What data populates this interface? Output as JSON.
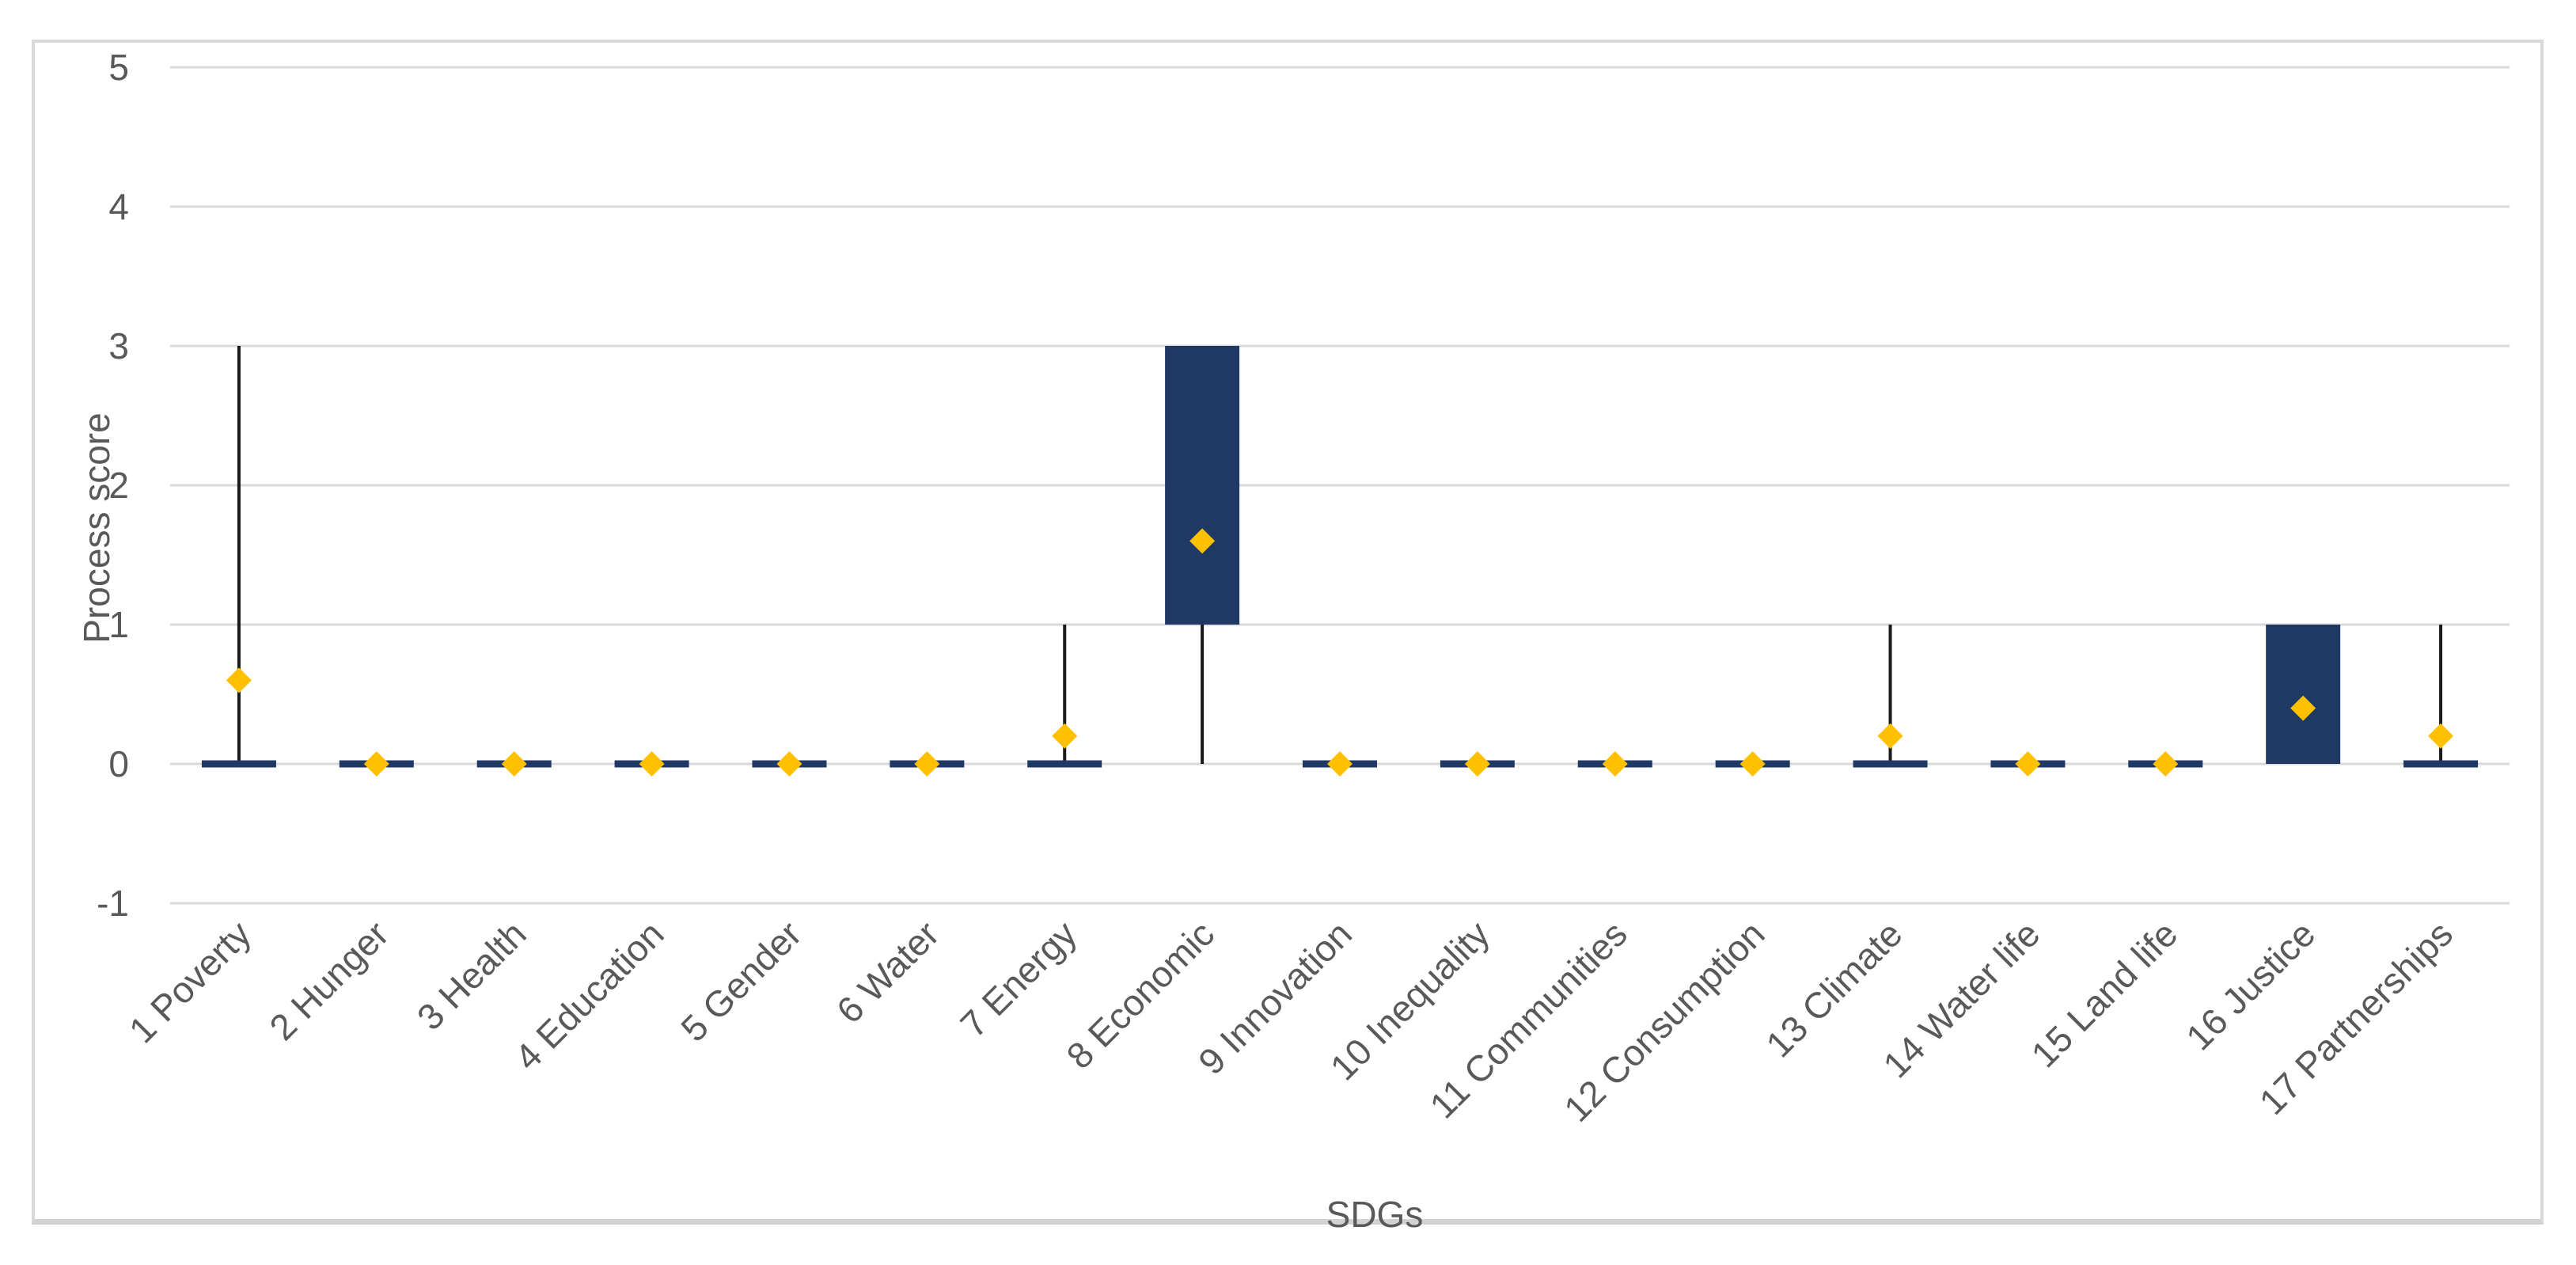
{
  "chart_data": {
    "type": "box",
    "title": "",
    "xlabel": "SDGs",
    "ylabel": "Process score",
    "ylim": [
      -1,
      5
    ],
    "yticks": [
      5,
      4,
      3,
      2,
      1,
      0,
      -1
    ],
    "grid": "horizontal",
    "legend": "none",
    "categories": [
      "1 Poverty",
      "2 Hunger",
      "3 Health",
      "4 Education",
      "5 Gender",
      "6 Water",
      "7 Energy",
      "8 Economic",
      "9 Innovation",
      "10 Inequality",
      "11 Communities",
      "12 Consumption",
      "13 Climate",
      "14 Water life",
      "15 Land life",
      "16 Justice",
      "17 Partnerships"
    ],
    "series": [
      {
        "label": "1 Poverty",
        "whisker_low": 0,
        "q1": 0,
        "q3": 0,
        "whisker_high": 3,
        "mean": 0.6
      },
      {
        "label": "2 Hunger",
        "whisker_low": 0,
        "q1": 0,
        "q3": 0,
        "whisker_high": 0,
        "mean": 0
      },
      {
        "label": "3 Health",
        "whisker_low": 0,
        "q1": 0,
        "q3": 0,
        "whisker_high": 0,
        "mean": 0
      },
      {
        "label": "4 Education",
        "whisker_low": 0,
        "q1": 0,
        "q3": 0,
        "whisker_high": 0,
        "mean": 0
      },
      {
        "label": "5 Gender",
        "whisker_low": 0,
        "q1": 0,
        "q3": 0,
        "whisker_high": 0,
        "mean": 0
      },
      {
        "label": "6 Water",
        "whisker_low": 0,
        "q1": 0,
        "q3": 0,
        "whisker_high": 0,
        "mean": 0
      },
      {
        "label": "7 Energy",
        "whisker_low": 0,
        "q1": 0,
        "q3": 0,
        "whisker_high": 1,
        "mean": 0.2
      },
      {
        "label": "8 Economic",
        "whisker_low": 0,
        "q1": 1,
        "q3": 3,
        "whisker_high": 3,
        "mean": 1.6
      },
      {
        "label": "9 Innovation",
        "whisker_low": 0,
        "q1": 0,
        "q3": 0,
        "whisker_high": 0,
        "mean": 0
      },
      {
        "label": "10 Inequality",
        "whisker_low": 0,
        "q1": 0,
        "q3": 0,
        "whisker_high": 0,
        "mean": 0
      },
      {
        "label": "11 Communities",
        "whisker_low": 0,
        "q1": 0,
        "q3": 0,
        "whisker_high": 0,
        "mean": 0
      },
      {
        "label": "12 Consumption",
        "whisker_low": 0,
        "q1": 0,
        "q3": 0,
        "whisker_high": 0,
        "mean": 0
      },
      {
        "label": "13 Climate",
        "whisker_low": 0,
        "q1": 0,
        "q3": 0,
        "whisker_high": 1,
        "mean": 0.2
      },
      {
        "label": "14 Water life",
        "whisker_low": 0,
        "q1": 0,
        "q3": 0,
        "whisker_high": 0,
        "mean": 0
      },
      {
        "label": "15 Land life",
        "whisker_low": 0,
        "q1": 0,
        "q3": 0,
        "whisker_high": 0,
        "mean": 0
      },
      {
        "label": "16 Justice",
        "whisker_low": 0,
        "q1": 0,
        "q3": 1,
        "whisker_high": 1,
        "mean": 0.4
      },
      {
        "label": "17 Partnerships",
        "whisker_low": 0,
        "q1": 0,
        "q3": 0,
        "whisker_high": 1,
        "mean": 0.2
      }
    ],
    "colors": {
      "box_fill": "#1f3864",
      "whisker": "#1a1a1a",
      "mean_marker": "#ffc000",
      "gridline": "#d9d9d9",
      "tick_text": "#595959",
      "frame_border": "#d9d9d9"
    }
  }
}
